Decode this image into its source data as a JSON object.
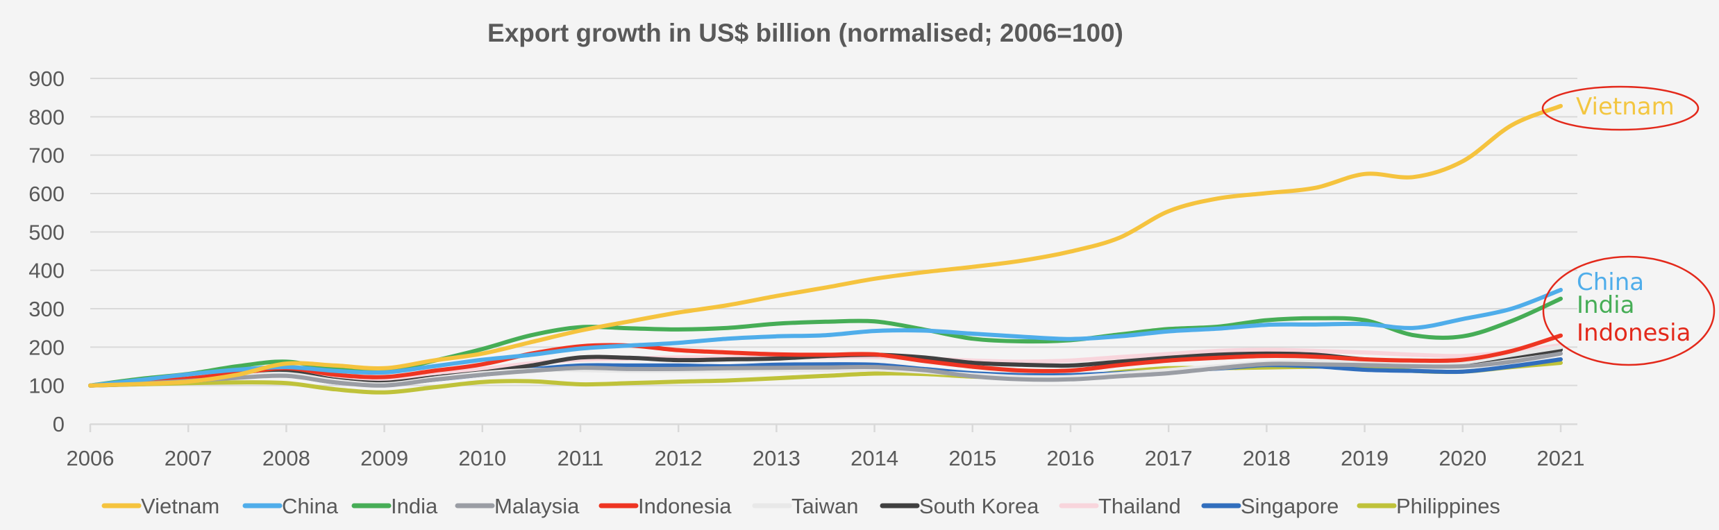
{
  "chart_data": {
    "type": "line",
    "title": "Export growth in US$ billion (normalised; 2006=100)",
    "xlabel": "",
    "ylabel": "",
    "xlim": [
      2006,
      2021
    ],
    "ylim": [
      0,
      900
    ],
    "grid": true,
    "legend_position": "bottom",
    "x_ticks": [
      "2006",
      "2007",
      "2008",
      "2009",
      "2010",
      "2011",
      "2012",
      "2013",
      "2014",
      "2015",
      "2016",
      "2017",
      "2018",
      "2019",
      "2020",
      "2021"
    ],
    "y_ticks": [
      "0",
      "100",
      "200",
      "300",
      "400",
      "500",
      "600",
      "700",
      "800",
      "900"
    ],
    "x": [
      2006.0,
      2006.5,
      2007.0,
      2007.5,
      2008.0,
      2008.5,
      2009.0,
      2009.5,
      2010.0,
      2010.5,
      2011.0,
      2011.5,
      2012.0,
      2012.5,
      2013.0,
      2013.5,
      2014.0,
      2014.5,
      2015.0,
      2015.5,
      2016.0,
      2016.5,
      2017.0,
      2017.5,
      2018.0,
      2018.5,
      2019.0,
      2019.5,
      2020.0,
      2020.5,
      2021.0
    ],
    "series": [
      {
        "name": "Vietnam",
        "color": "#f5c33e",
        "values": [
          100,
          104,
          110,
          128,
          157,
          152,
          145,
          165,
          183,
          213,
          243,
          267,
          290,
          309,
          333,
          355,
          378,
          395,
          409,
          425,
          449,
          485,
          554,
          587,
          601,
          615,
          651,
          643,
          684,
          778,
          828
        ]
      },
      {
        "name": "China",
        "color": "#4fadea",
        "values": [
          100,
          114,
          129,
          141,
          148,
          138,
          134,
          150,
          167,
          180,
          196,
          204,
          211,
          222,
          228,
          231,
          242,
          243,
          235,
          227,
          221,
          228,
          241,
          248,
          258,
          259,
          260,
          250,
          273,
          300,
          349
        ]
      },
      {
        "name": "India",
        "color": "#46ad56",
        "values": [
          100,
          117,
          130,
          150,
          162,
          142,
          138,
          164,
          195,
          231,
          252,
          249,
          246,
          250,
          261,
          266,
          267,
          246,
          222,
          215,
          218,
          233,
          247,
          253,
          270,
          275,
          270,
          231,
          228,
          268,
          326
        ]
      },
      {
        "name": "Malaysia",
        "color": "#9a9da4",
        "values": [
          100,
          105,
          112,
          120,
          125,
          108,
          100,
          115,
          128,
          138,
          146,
          143,
          143,
          145,
          146,
          147,
          148,
          140,
          124,
          116,
          116,
          124,
          132,
          145,
          156,
          155,
          153,
          150,
          150,
          162,
          183
        ]
      },
      {
        "name": "Indonesia",
        "color": "#ee3522",
        "values": [
          100,
          108,
          118,
          132,
          145,
          128,
          122,
          138,
          155,
          183,
          202,
          204,
          192,
          186,
          181,
          180,
          181,
          164,
          149,
          139,
          139,
          153,
          165,
          172,
          177,
          175,
          168,
          165,
          167,
          190,
          230
        ]
      },
      {
        "name": "Taiwan",
        "color": "#e8e8e8",
        "values": [
          100,
          106,
          114,
          124,
          130,
          112,
          103,
          118,
          132,
          140,
          140,
          138,
          138,
          138,
          140,
          140,
          142,
          136,
          128,
          122,
          122,
          130,
          140,
          150,
          160,
          162,
          160,
          158,
          160,
          180,
          200
        ]
      },
      {
        "name": "South Korea",
        "color": "#404040",
        "values": [
          100,
          106,
          116,
          128,
          136,
          115,
          107,
          121,
          134,
          152,
          173,
          172,
          166,
          168,
          170,
          177,
          180,
          173,
          159,
          154,
          152,
          162,
          172,
          180,
          183,
          180,
          168,
          162,
          160,
          175,
          193
        ]
      },
      {
        "name": "Thailand",
        "color": "#f8d5dc",
        "values": [
          100,
          108,
          120,
          132,
          138,
          122,
          116,
          130,
          143,
          158,
          167,
          170,
          173,
          173,
          173,
          174,
          174,
          170,
          165,
          162,
          165,
          174,
          182,
          190,
          193,
          190,
          186,
          180,
          177,
          188,
          205
        ]
      },
      {
        "name": "Singapore",
        "color": "#316ebd",
        "values": [
          100,
          104,
          111,
          122,
          126,
          108,
          102,
          115,
          128,
          142,
          152,
          152,
          152,
          150,
          154,
          155,
          154,
          143,
          132,
          127,
          127,
          132,
          138,
          144,
          153,
          150,
          141,
          138,
          136,
          150,
          168
        ]
      },
      {
        "name": "Philippines",
        "color": "#bfc23a",
        "values": [
          100,
          103,
          106,
          108,
          106,
          90,
          82,
          95,
          109,
          111,
          103,
          106,
          110,
          113,
          119,
          125,
          131,
          130,
          123,
          121,
          121,
          135,
          145,
          145,
          147,
          149,
          150,
          138,
          136,
          148,
          159
        ]
      }
    ],
    "annotations": [
      {
        "text": "Vietnam",
        "color": "#f3c641",
        "circled": true
      },
      {
        "text": "China",
        "color": "#4fadea",
        "circled": true
      },
      {
        "text": "India",
        "color": "#46ad56",
        "circled": true
      },
      {
        "text": "Indonesia",
        "color": "#e3291b",
        "circled": true
      }
    ],
    "annotation_circle_color": "#e3291b"
  }
}
